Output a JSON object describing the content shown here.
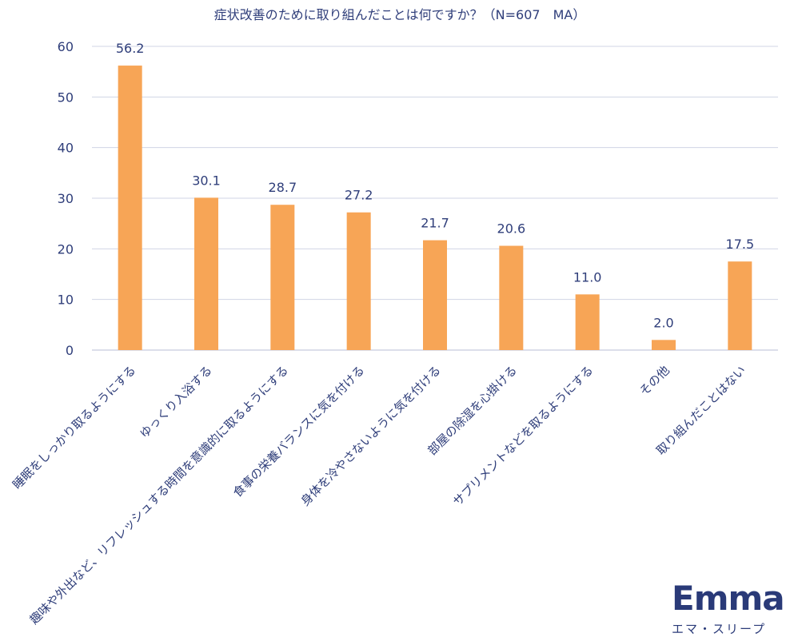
{
  "chart_data": {
    "type": "bar",
    "title": "症状改善のために取り組んだことは何ですか？（N=607　MA）",
    "categories": [
      "睡眠をしっかり取るようにする",
      "ゆっくり入浴する",
      "趣味や外出など、リフレッシュする時間を意識的に取るようにする",
      "食事の栄養バランスに気を付ける",
      "身体を冷やさないように気を付ける",
      "部屋の除湿を心掛ける",
      "サプリメントなどを取るようにする",
      "その他",
      "取り組んだことはない"
    ],
    "values": [
      56.2,
      30.1,
      28.7,
      27.2,
      21.7,
      20.6,
      11.0,
      2.0,
      17.5
    ],
    "value_labels": [
      "56.2",
      "30.1",
      "28.7",
      "27.2",
      "21.7",
      "20.6",
      "11.0",
      "2.0",
      "17.5"
    ],
    "ylim": [
      0,
      60
    ],
    "yticks": [
      "0",
      "10",
      "20",
      "30",
      "40",
      "50",
      "60"
    ],
    "grid": true,
    "bar_color": "#f7a556",
    "grid_color": "#d0d4e4",
    "text_color": "#2f3e7a"
  },
  "brand": {
    "logo": "Emma",
    "subtitle": "エマ・スリープ"
  }
}
